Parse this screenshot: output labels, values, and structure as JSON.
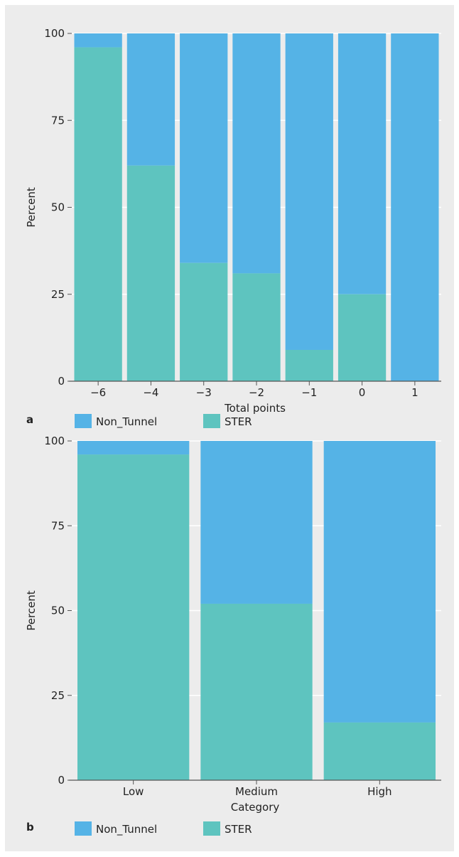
{
  "colors": {
    "non_tunnel": "#55b3e6",
    "ster": "#5ec4bf",
    "grid": "#ffffff",
    "background": "#ececec",
    "axis": "#555555"
  },
  "chart_data": [
    {
      "panel": "a",
      "type": "bar",
      "stacked": true,
      "xlabel": "Total points",
      "ylabel": "Percent",
      "categories": [
        "−6",
        "−4",
        "−3",
        "−2",
        "−1",
        "0",
        "1"
      ],
      "ylim": [
        0,
        100
      ],
      "yticks": [
        0,
        25,
        50,
        75,
        100
      ],
      "grid": true,
      "legend_position": "bottom",
      "series": [
        {
          "name": "STER",
          "values": [
            96,
            62,
            34,
            31,
            9,
            25,
            0
          ]
        },
        {
          "name": "Non_Tunnel",
          "values": [
            4,
            38,
            66,
            69,
            91,
            75,
            100
          ]
        }
      ]
    },
    {
      "panel": "b",
      "type": "bar",
      "stacked": true,
      "xlabel": "Category",
      "ylabel": "Percent",
      "categories": [
        "Low",
        "Medium",
        "High"
      ],
      "ylim": [
        0,
        100
      ],
      "yticks": [
        0,
        25,
        50,
        75,
        100
      ],
      "grid": true,
      "legend_position": "bottom",
      "series": [
        {
          "name": "STER",
          "values": [
            96,
            52,
            17
          ]
        },
        {
          "name": "Non_Tunnel",
          "values": [
            4,
            48,
            83
          ]
        }
      ]
    }
  ]
}
